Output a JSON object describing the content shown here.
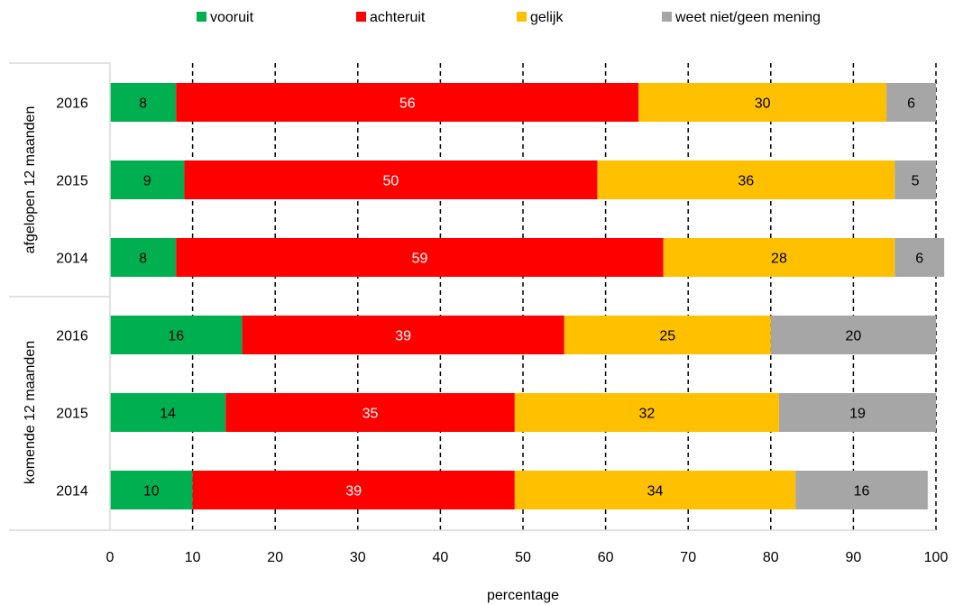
{
  "chart_data": {
    "type": "bar",
    "orientation": "horizontal",
    "stacked": true,
    "xlabel": "percentage",
    "xlim": [
      0,
      100
    ],
    "xticks": [
      0,
      10,
      20,
      30,
      40,
      50,
      60,
      70,
      80,
      90,
      100
    ],
    "grid": "vertical dashed",
    "legend_position": "top",
    "groups": [
      {
        "label": "afgelopen 12 maanden",
        "rows": [
          "2016",
          "2015",
          "2014"
        ]
      },
      {
        "label": "komende 12 maanden",
        "rows": [
          "2016",
          "2015",
          "2014"
        ]
      }
    ],
    "categories": [
      "afgelopen 12 maanden 2016",
      "afgelopen 12 maanden 2015",
      "afgelopen 12 maanden 2014",
      "komende 12 maanden 2016",
      "komende 12 maanden 2015",
      "komende 12 maanden 2014"
    ],
    "series": [
      {
        "name": "vooruit",
        "color": "#00B050",
        "label_color": "#000000",
        "values": [
          8,
          9,
          8,
          16,
          14,
          10
        ]
      },
      {
        "name": "achteruit",
        "color": "#FF0000",
        "label_color": "#FFFFFF",
        "values": [
          56,
          50,
          59,
          39,
          35,
          39
        ]
      },
      {
        "name": "gelijk",
        "color": "#FFC000",
        "label_color": "#000000",
        "values": [
          30,
          36,
          28,
          25,
          32,
          34
        ]
      },
      {
        "name": "weet niet/geen mening",
        "color": "#A6A6A6",
        "label_color": "#000000",
        "values": [
          6,
          5,
          6,
          20,
          19,
          16
        ]
      }
    ]
  }
}
